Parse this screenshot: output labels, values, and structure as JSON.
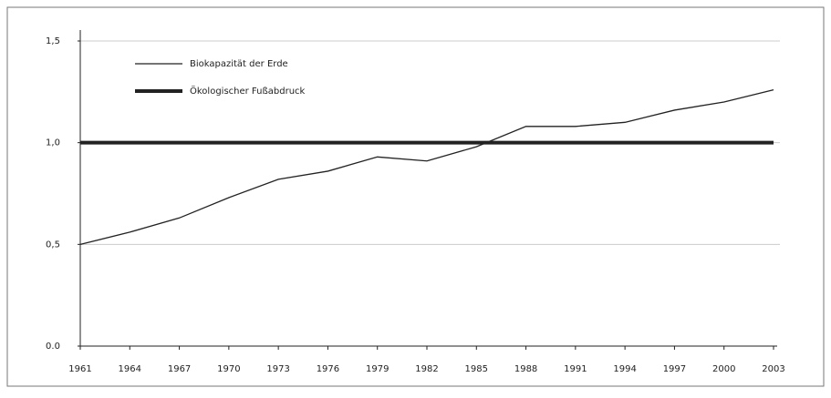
{
  "chart_data": {
    "type": "line",
    "x": [
      1961,
      1964,
      1967,
      1970,
      1973,
      1976,
      1979,
      1982,
      1985,
      1988,
      1991,
      1994,
      1997,
      2000,
      2003
    ],
    "series": [
      {
        "name": "Biokapazität der Erde",
        "color": "#222222",
        "width": 1.3,
        "values": [
          0.5,
          0.56,
          0.63,
          0.73,
          0.82,
          0.86,
          0.93,
          0.91,
          0.98,
          1.08,
          1.08,
          1.1,
          1.16,
          1.2,
          1.26
        ]
      },
      {
        "name": "Ökologischer Fußabdruck",
        "color": "#222222",
        "width": 4,
        "values": [
          1.0,
          1.0,
          1.0,
          1.0,
          1.0,
          1.0,
          1.0,
          1.0,
          1.0,
          1.0,
          1.0,
          1.0,
          1.0,
          1.0,
          1.0
        ]
      }
    ],
    "xlim": [
      1961,
      2003
    ],
    "xticks": [
      1961,
      1964,
      1967,
      1970,
      1973,
      1976,
      1979,
      1982,
      1985,
      1988,
      1991,
      1994,
      1997,
      2000,
      2003
    ],
    "ylim": [
      0,
      1.5
    ],
    "yticks": [
      {
        "value": 0,
        "label": "0.0"
      },
      {
        "value": 0.5,
        "label": "0,5"
      },
      {
        "value": 1.0,
        "label": "1,0"
      },
      {
        "value": 1.5,
        "label": "1,5"
      }
    ],
    "grid": true
  }
}
